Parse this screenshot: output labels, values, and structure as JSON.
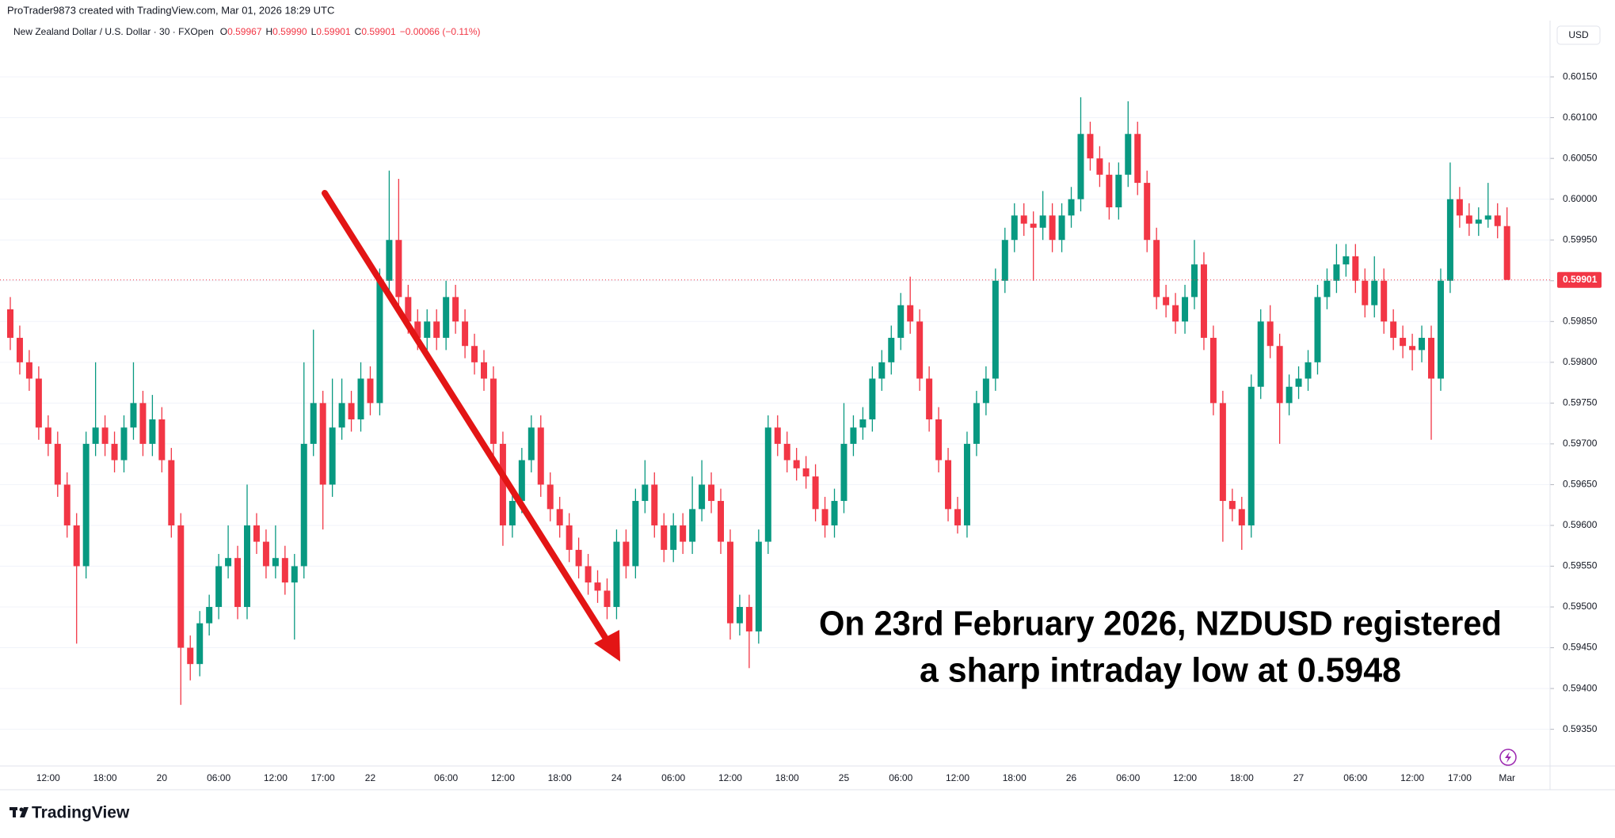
{
  "header": {
    "attribution": "ProTrader9873 created with TradingView.com, Mar 01, 2026 18:29 UTC"
  },
  "chart_data": {
    "type": "candlestick",
    "symbol": "New Zealand Dollar / U.S. Dollar · 30 · FXOpen",
    "ohlc_legend": [
      {
        "label": "O",
        "value": "0.59967"
      },
      {
        "label": "H",
        "value": "0.59990"
      },
      {
        "label": "L",
        "value": "0.59901"
      },
      {
        "label": "C",
        "value": "0.59901"
      }
    ],
    "change": "−0.00066 (−0.11%)",
    "currency": "USD",
    "up_color": "#089981",
    "down_color": "#f23645",
    "categories": [
      null,
      null,
      null,
      null,
      "12:00",
      null,
      null,
      null,
      null,
      null,
      "18:00",
      null,
      null,
      null,
      null,
      null,
      "20",
      null,
      null,
      null,
      null,
      null,
      "06:00",
      null,
      null,
      null,
      null,
      null,
      "12:00",
      null,
      null,
      null,
      null,
      "17:00",
      null,
      null,
      null,
      null,
      "22",
      null,
      null,
      null,
      null,
      null,
      null,
      null,
      "06:00",
      null,
      null,
      null,
      null,
      null,
      "12:00",
      null,
      null,
      null,
      null,
      null,
      "18:00",
      null,
      null,
      null,
      null,
      null,
      "24",
      null,
      null,
      null,
      null,
      null,
      "06:00",
      null,
      null,
      null,
      null,
      null,
      "12:00",
      null,
      null,
      null,
      null,
      null,
      "18:00",
      null,
      null,
      null,
      null,
      null,
      "25",
      null,
      null,
      null,
      null,
      null,
      "06:00",
      null,
      null,
      null,
      null,
      null,
      "12:00",
      null,
      null,
      null,
      null,
      null,
      "18:00",
      null,
      null,
      null,
      null,
      null,
      "26",
      null,
      null,
      null,
      null,
      null,
      "06:00",
      null,
      null,
      null,
      null,
      null,
      "12:00",
      null,
      null,
      null,
      null,
      null,
      "18:00",
      null,
      null,
      null,
      null,
      null,
      "27",
      null,
      null,
      null,
      null,
      null,
      "06:00",
      null,
      null,
      null,
      null,
      null,
      "12:00",
      null,
      null,
      null,
      null,
      "17:00",
      null,
      null,
      null,
      null,
      "Mar"
    ],
    "open": [
      0.59865,
      0.5983,
      0.598,
      0.5978,
      0.5972,
      0.597,
      0.5965,
      0.596,
      0.5955,
      0.597,
      0.5972,
      0.597,
      0.5968,
      0.5972,
      0.5975,
      0.597,
      0.5973,
      0.5968,
      0.596,
      0.5945,
      0.5943,
      0.5948,
      0.595,
      0.5955,
      0.5956,
      0.595,
      0.596,
      0.5958,
      0.5955,
      0.5956,
      0.5953,
      0.5955,
      0.597,
      0.5975,
      0.5965,
      0.5972,
      0.5975,
      0.5973,
      0.5978,
      0.5975,
      0.599,
      0.5995,
      0.5988,
      0.5985,
      0.5983,
      0.5985,
      0.5983,
      0.5988,
      0.5985,
      0.5982,
      0.598,
      0.5978,
      0.597,
      0.596,
      0.5963,
      0.5968,
      0.5972,
      0.5965,
      0.5962,
      0.596,
      0.5957,
      0.5955,
      0.5953,
      0.5952,
      0.595,
      0.5958,
      0.5955,
      0.5963,
      0.5965,
      0.596,
      0.5957,
      0.596,
      0.5958,
      0.5962,
      0.5965,
      0.5963,
      0.5958,
      0.5948,
      0.595,
      0.5947,
      0.5958,
      0.5972,
      0.597,
      0.5968,
      0.5967,
      0.5966,
      0.5962,
      0.596,
      0.5963,
      0.597,
      0.5972,
      0.5973,
      0.5978,
      0.598,
      0.5983,
      0.5987,
      0.5985,
      0.5978,
      0.5973,
      0.5968,
      0.5962,
      0.596,
      0.597,
      0.5975,
      0.5978,
      0.599,
      0.5995,
      0.5998,
      0.5997,
      0.59965,
      0.5998,
      0.5995,
      0.5998,
      0.6,
      0.6008,
      0.6005,
      0.6003,
      0.5999,
      0.6003,
      0.6008,
      0.6002,
      0.5995,
      0.5988,
      0.5987,
      0.5985,
      0.5988,
      0.5992,
      0.5983,
      0.5975,
      0.5963,
      0.5962,
      0.596,
      0.5977,
      0.5985,
      0.5982,
      0.5975,
      0.5977,
      0.5978,
      0.598,
      0.5988,
      0.599,
      0.5992,
      0.5993,
      0.599,
      0.5987,
      0.599,
      0.5985,
      0.5983,
      0.5982,
      0.59815,
      0.5983,
      0.5978,
      0.599,
      0.6,
      0.5998,
      0.5997,
      0.59975,
      0.5998,
      0.59967
    ],
    "high": [
      0.5988,
      0.59845,
      0.59815,
      0.59795,
      0.59735,
      0.59715,
      0.59665,
      0.59615,
      0.59715,
      0.598,
      0.59735,
      0.59715,
      0.59735,
      0.598,
      0.59765,
      0.5976,
      0.59745,
      0.59695,
      0.59615,
      0.59465,
      0.59495,
      0.59515,
      0.59565,
      0.596,
      0.59575,
      0.5965,
      0.59615,
      0.59595,
      0.596,
      0.59575,
      0.59565,
      0.598,
      0.5984,
      0.59765,
      0.5978,
      0.5978,
      0.59765,
      0.598,
      0.59795,
      0.59915,
      0.60035,
      0.60025,
      0.59895,
      0.59865,
      0.59865,
      0.59865,
      0.599,
      0.59895,
      0.59865,
      0.59835,
      0.59815,
      0.59795,
      0.59715,
      0.59645,
      0.59695,
      0.59735,
      0.59735,
      0.59665,
      0.59635,
      0.59615,
      0.59585,
      0.59565,
      0.59545,
      0.59535,
      0.59595,
      0.59595,
      0.59645,
      0.5968,
      0.59665,
      0.59615,
      0.59615,
      0.59615,
      0.5966,
      0.5968,
      0.59665,
      0.59645,
      0.59595,
      0.59515,
      0.59515,
      0.59595,
      0.59735,
      0.59735,
      0.59715,
      0.59695,
      0.59685,
      0.59675,
      0.59635,
      0.59645,
      0.5975,
      0.59735,
      0.59745,
      0.59795,
      0.59815,
      0.59845,
      0.59885,
      0.59905,
      0.59865,
      0.59795,
      0.59745,
      0.59695,
      0.59635,
      0.59715,
      0.59765,
      0.59795,
      0.59915,
      0.59965,
      0.59995,
      0.59995,
      0.59985,
      0.6001,
      0.59995,
      0.59995,
      0.60015,
      0.60125,
      0.60095,
      0.60065,
      0.60045,
      0.60045,
      0.6012,
      0.60095,
      0.60035,
      0.59965,
      0.59895,
      0.59885,
      0.59895,
      0.5995,
      0.59935,
      0.59845,
      0.59765,
      0.59645,
      0.59635,
      0.59785,
      0.59865,
      0.5987,
      0.59835,
      0.59785,
      0.59795,
      0.59815,
      0.59895,
      0.59915,
      0.59945,
      0.59945,
      0.59945,
      0.59915,
      0.5993,
      0.59915,
      0.59865,
      0.59845,
      0.59835,
      0.59845,
      0.59845,
      0.59915,
      0.60045,
      0.60015,
      0.59995,
      0.5999,
      0.6002,
      0.59995,
      0.5999
    ],
    "low": [
      0.59815,
      0.59785,
      0.59765,
      0.59705,
      0.59685,
      0.59635,
      0.59585,
      0.59455,
      0.59535,
      0.59685,
      0.59685,
      0.59665,
      0.59665,
      0.59705,
      0.59685,
      0.59685,
      0.59665,
      0.59585,
      0.5938,
      0.5941,
      0.59415,
      0.59465,
      0.59485,
      0.59535,
      0.59485,
      0.59485,
      0.59565,
      0.59535,
      0.59535,
      0.59515,
      0.5946,
      0.59535,
      0.59685,
      0.59595,
      0.59635,
      0.59705,
      0.59715,
      0.59715,
      0.59735,
      0.59735,
      0.59885,
      0.59865,
      0.59835,
      0.59815,
      0.59815,
      0.59815,
      0.59815,
      0.59835,
      0.59805,
      0.59785,
      0.59765,
      0.59685,
      0.59575,
      0.59585,
      0.59615,
      0.59665,
      0.59635,
      0.59605,
      0.59585,
      0.59555,
      0.59535,
      0.59515,
      0.59505,
      0.59485,
      0.59485,
      0.59535,
      0.59535,
      0.59615,
      0.59585,
      0.59555,
      0.59555,
      0.59565,
      0.59565,
      0.59605,
      0.59615,
      0.59565,
      0.5946,
      0.59465,
      0.59425,
      0.59455,
      0.59565,
      0.59685,
      0.59665,
      0.59655,
      0.59645,
      0.59605,
      0.59585,
      0.59585,
      0.59615,
      0.59685,
      0.59705,
      0.59715,
      0.59765,
      0.59785,
      0.59815,
      0.59835,
      0.59765,
      0.59715,
      0.59665,
      0.59605,
      0.5959,
      0.59585,
      0.59685,
      0.59735,
      0.59765,
      0.59885,
      0.59935,
      0.59955,
      0.599,
      0.5995,
      0.59935,
      0.59935,
      0.59965,
      0.59985,
      0.60035,
      0.60015,
      0.59975,
      0.59975,
      0.60015,
      0.60005,
      0.59935,
      0.59865,
      0.59855,
      0.59835,
      0.59835,
      0.59865,
      0.59815,
      0.59735,
      0.5958,
      0.59605,
      0.5957,
      0.59585,
      0.59755,
      0.59805,
      0.597,
      0.59735,
      0.59755,
      0.59765,
      0.59785,
      0.59865,
      0.59885,
      0.59905,
      0.59885,
      0.59855,
      0.59855,
      0.59835,
      0.59815,
      0.59805,
      0.5979,
      0.598,
      0.59705,
      0.59765,
      0.59885,
      0.59965,
      0.59955,
      0.59955,
      0.59965,
      0.59952,
      0.59901
    ],
    "close": [
      0.5983,
      0.598,
      0.5978,
      0.5972,
      0.597,
      0.5965,
      0.596,
      0.5955,
      0.597,
      0.5972,
      0.597,
      0.5968,
      0.5972,
      0.5975,
      0.597,
      0.5973,
      0.5968,
      0.596,
      0.5945,
      0.5943,
      0.5948,
      0.595,
      0.5955,
      0.5956,
      0.595,
      0.596,
      0.5958,
      0.5955,
      0.5956,
      0.5953,
      0.5955,
      0.597,
      0.5975,
      0.5965,
      0.5972,
      0.5975,
      0.5973,
      0.5978,
      0.5975,
      0.599,
      0.5995,
      0.5988,
      0.5985,
      0.5983,
      0.5985,
      0.5983,
      0.5988,
      0.5985,
      0.5982,
      0.598,
      0.5978,
      0.597,
      0.596,
      0.5963,
      0.5968,
      0.5972,
      0.5965,
      0.5962,
      0.596,
      0.5957,
      0.5955,
      0.5953,
      0.5952,
      0.595,
      0.5958,
      0.5955,
      0.5963,
      0.5965,
      0.596,
      0.5957,
      0.596,
      0.5958,
      0.5962,
      0.5965,
      0.5963,
      0.5958,
      0.5948,
      0.595,
      0.5947,
      0.5958,
      0.5972,
      0.597,
      0.5968,
      0.5967,
      0.5966,
      0.5962,
      0.596,
      0.5963,
      0.597,
      0.5972,
      0.5973,
      0.5978,
      0.598,
      0.5983,
      0.5987,
      0.5985,
      0.5978,
      0.5973,
      0.5968,
      0.5962,
      0.596,
      0.597,
      0.5975,
      0.5978,
      0.599,
      0.5995,
      0.5998,
      0.5997,
      0.59965,
      0.5998,
      0.5995,
      0.5998,
      0.6,
      0.6008,
      0.6005,
      0.6003,
      0.5999,
      0.6003,
      0.6008,
      0.6002,
      0.5995,
      0.5988,
      0.5987,
      0.5985,
      0.5988,
      0.5992,
      0.5983,
      0.5975,
      0.5963,
      0.5962,
      0.596,
      0.5977,
      0.5985,
      0.5982,
      0.5975,
      0.5977,
      0.5978,
      0.598,
      0.5988,
      0.599,
      0.5992,
      0.5993,
      0.599,
      0.5987,
      0.599,
      0.5985,
      0.5983,
      0.5982,
      0.59815,
      0.5983,
      0.5978,
      0.599,
      0.6,
      0.5998,
      0.5997,
      0.59975,
      0.5998,
      0.59967,
      0.59901
    ],
    "ylim": [
      0.59305,
      0.60219
    ],
    "yticks": [
      {
        "value": 0.5935,
        "label": "0.59350"
      },
      {
        "value": 0.594,
        "label": "0.59400"
      },
      {
        "value": 0.5945,
        "label": "0.59450"
      },
      {
        "value": 0.595,
        "label": "0.59500"
      },
      {
        "value": 0.5955,
        "label": "0.59550"
      },
      {
        "value": 0.596,
        "label": "0.59600"
      },
      {
        "value": 0.5965,
        "label": "0.59650"
      },
      {
        "value": 0.597,
        "label": "0.59700"
      },
      {
        "value": 0.5975,
        "label": "0.59750"
      },
      {
        "value": 0.598,
        "label": "0.59800"
      },
      {
        "value": 0.5985,
        "label": "0.59850"
      },
      {
        "value": 0.599,
        "label": "0.59900"
      },
      {
        "value": 0.5995,
        "label": "0.59950"
      },
      {
        "value": 0.6,
        "label": "0.60000"
      },
      {
        "value": 0.6005,
        "label": "0.60050"
      },
      {
        "value": 0.601,
        "label": "0.60100"
      },
      {
        "value": 0.6015,
        "label": "0.60150"
      }
    ],
    "grid": true,
    "last_price": {
      "value": 0.59901,
      "label": "0.59901"
    },
    "annotation": [
      "On 23rd February 2026, NZDUSD registered",
      "a sharp intraday low at 0.5948"
    ]
  },
  "footer": {
    "logo": "TradingView"
  }
}
